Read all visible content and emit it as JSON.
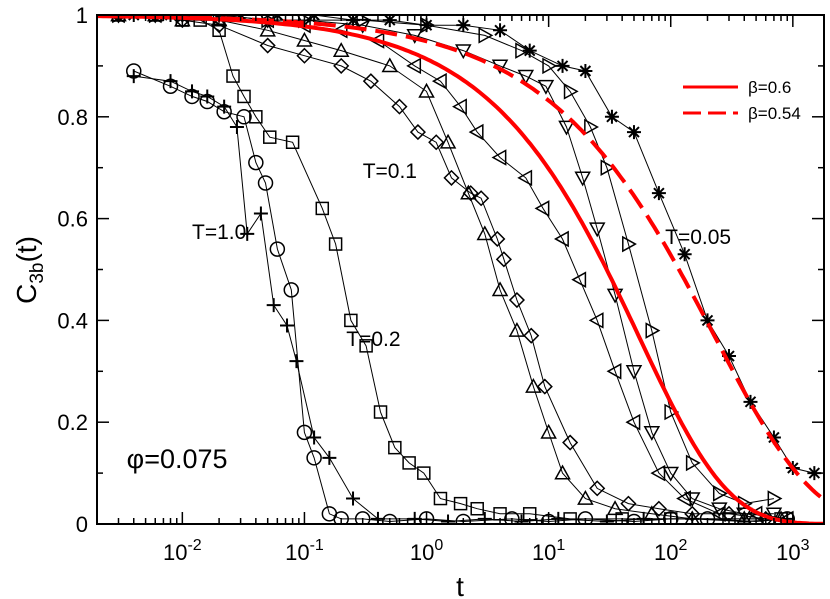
{
  "chart_data": {
    "type": "line",
    "xscale": "log",
    "xlim": [
      0.002,
      1800
    ],
    "ylim": [
      0,
      1
    ],
    "xlabel": "t",
    "ylabel_main": "C",
    "ylabel_sub": "3b",
    "ylabel_tail": "(t)",
    "x_ticks": [
      {
        "value": 0.01,
        "base": "10",
        "exp": "-2"
      },
      {
        "value": 0.1,
        "base": "10",
        "exp": "-1"
      },
      {
        "value": 1,
        "base": "10",
        "exp": "0"
      },
      {
        "value": 10,
        "base": "10",
        "exp": "1"
      },
      {
        "value": 100,
        "base": "10",
        "exp": "2"
      },
      {
        "value": 1000,
        "base": "10",
        "exp": "3"
      }
    ],
    "y_ticks": [
      {
        "value": 0,
        "label": "0"
      },
      {
        "value": 0.2,
        "label": "0.2"
      },
      {
        "value": 0.4,
        "label": "0.4"
      },
      {
        "value": 0.6,
        "label": "0.6"
      },
      {
        "value": 0.8,
        "label": "0.8"
      },
      {
        "value": 1,
        "label": "1"
      }
    ],
    "annotations": [
      {
        "text": "T=1.0",
        "x": 0.012,
        "y": 0.56
      },
      {
        "text": "T=0.2",
        "x": 0.22,
        "y": 0.35
      },
      {
        "text": "T=0.1",
        "x": 0.3,
        "y": 0.68
      },
      {
        "text": "T=0.05",
        "x": 90,
        "y": 0.55
      }
    ],
    "phi_label": {
      "symbol": "φ",
      "text": "=0.075",
      "x": 0.0035,
      "y": 0.11
    },
    "series": [
      {
        "name": "T=1.0 (circles)",
        "marker": "circle",
        "x": [
          0.004,
          0.008,
          0.012,
          0.016,
          0.022,
          0.032,
          0.04,
          0.048,
          0.06,
          0.078,
          0.1,
          0.12,
          0.16,
          0.2,
          0.3,
          0.5,
          1,
          2,
          5,
          10,
          20,
          50,
          100,
          200,
          500,
          900
        ],
        "y": [
          0.89,
          0.86,
          0.84,
          0.83,
          0.81,
          0.8,
          0.71,
          0.67,
          0.54,
          0.46,
          0.18,
          0.13,
          0.02,
          0.01,
          0.01,
          0.005,
          0.01,
          0.005,
          0.01,
          0.005,
          0.01,
          0.005,
          0.01,
          0.01,
          0.005,
          0.01
        ]
      },
      {
        "name": "T=1.0 (plus)",
        "marker": "plus",
        "x": [
          0.004,
          0.008,
          0.012,
          0.016,
          0.022,
          0.028,
          0.034,
          0.044,
          0.056,
          0.072,
          0.086,
          0.12,
          0.16,
          0.25,
          0.4,
          0.8,
          1.5,
          3,
          6,
          12,
          30,
          60,
          150,
          400,
          900
        ],
        "y": [
          0.88,
          0.87,
          0.85,
          0.84,
          0.82,
          0.78,
          0.57,
          0.61,
          0.43,
          0.39,
          0.32,
          0.17,
          0.13,
          0.05,
          0.01,
          0.01,
          0.005,
          0.01,
          0.005,
          0.01,
          0.005,
          0.01,
          0.01,
          0.005,
          0.01
        ]
      },
      {
        "name": "T=0.2 (squares)",
        "marker": "square",
        "x": [
          0.003,
          0.006,
          0.01,
          0.014,
          0.02,
          0.026,
          0.032,
          0.04,
          0.052,
          0.08,
          0.14,
          0.18,
          0.24,
          0.32,
          0.42,
          0.55,
          0.72,
          0.95,
          1.3,
          1.9,
          2.6,
          4,
          7,
          15,
          40,
          100,
          300,
          800
        ],
        "y": [
          1.0,
          1.0,
          0.99,
          0.99,
          0.97,
          0.88,
          0.84,
          0.8,
          0.76,
          0.75,
          0.62,
          0.55,
          0.4,
          0.35,
          0.22,
          0.15,
          0.12,
          0.1,
          0.05,
          0.04,
          0.03,
          0.02,
          0.02,
          0.01,
          0.01,
          0.01,
          0.01,
          0.01
        ]
      },
      {
        "name": "T=0.1 (diamonds)",
        "marker": "diamond",
        "x": [
          0.003,
          0.006,
          0.01,
          0.02,
          0.05,
          0.1,
          0.2,
          0.35,
          0.6,
          0.85,
          1.2,
          1.6,
          2.3,
          2.8,
          3.8,
          4.3,
          5.5,
          7.2,
          9.3,
          15,
          25,
          45,
          80,
          150,
          300,
          600
        ],
        "y": [
          1.0,
          1.0,
          0.99,
          0.98,
          0.94,
          0.92,
          0.9,
          0.87,
          0.82,
          0.77,
          0.75,
          0.68,
          0.65,
          0.64,
          0.56,
          0.52,
          0.44,
          0.37,
          0.27,
          0.16,
          0.07,
          0.04,
          0.03,
          0.02,
          0.02,
          0.01
        ]
      },
      {
        "name": "T=0.1 (up-triangles)",
        "marker": "triangle-up",
        "x": [
          0.003,
          0.006,
          0.01,
          0.02,
          0.05,
          0.1,
          0.2,
          0.5,
          1.0,
          1.5,
          2.2,
          3.0,
          4.0,
          5.5,
          7.5,
          10,
          13,
          20,
          35,
          70,
          150,
          400,
          800
        ],
        "y": [
          1.0,
          1.0,
          0.99,
          0.99,
          0.97,
          0.95,
          0.93,
          0.9,
          0.85,
          0.75,
          0.65,
          0.57,
          0.46,
          0.38,
          0.27,
          0.18,
          0.1,
          0.05,
          0.03,
          0.02,
          0.01,
          0.01,
          0.01
        ]
      },
      {
        "name": "T=0.1 (left-triangles)",
        "marker": "triangle-left",
        "x": [
          0.003,
          0.006,
          0.01,
          0.02,
          0.05,
          0.1,
          0.2,
          0.4,
          0.8,
          1.3,
          1.9,
          2.6,
          4.0,
          6.5,
          9.0,
          13,
          18,
          25,
          35,
          50,
          80,
          130,
          250,
          500,
          900
        ],
        "y": [
          1.0,
          1.0,
          1.0,
          0.99,
          0.99,
          0.98,
          0.97,
          0.95,
          0.9,
          0.87,
          0.82,
          0.77,
          0.72,
          0.68,
          0.62,
          0.56,
          0.48,
          0.4,
          0.3,
          0.2,
          0.1,
          0.05,
          0.02,
          0.02,
          0.01
        ]
      },
      {
        "name": "T=0.1 (down-triangles)",
        "marker": "triangle-down",
        "x": [
          0.003,
          0.006,
          0.01,
          0.02,
          0.05,
          0.1,
          0.3,
          0.8,
          2,
          4,
          6.5,
          9.5,
          14,
          19,
          25,
          35,
          50,
          70,
          100,
          150,
          250,
          400,
          700
        ],
        "y": [
          1.0,
          1.0,
          1.0,
          1.0,
          0.99,
          0.99,
          0.98,
          0.96,
          0.93,
          0.9,
          0.88,
          0.86,
          0.78,
          0.68,
          0.58,
          0.45,
          0.3,
          0.18,
          0.1,
          0.05,
          0.03,
          0.02,
          0.02
        ]
      },
      {
        "name": "T=0.05 (right-triangles)",
        "marker": "triangle-right",
        "x": [
          0.003,
          0.006,
          0.01,
          0.02,
          0.05,
          0.1,
          0.3,
          1,
          3,
          6,
          10,
          15,
          22,
          30,
          45,
          70,
          100,
          150,
          250,
          400,
          700
        ],
        "y": [
          1.0,
          1.0,
          1.0,
          1.0,
          0.99,
          0.99,
          0.99,
          0.98,
          0.96,
          0.93,
          0.9,
          0.85,
          0.78,
          0.7,
          0.55,
          0.38,
          0.22,
          0.12,
          0.06,
          0.04,
          0.05
        ]
      },
      {
        "name": "T=0.05 (asterisks)",
        "marker": "asterisk",
        "x": [
          0.004,
          0.008,
          0.015,
          0.03,
          0.06,
          0.12,
          0.25,
          0.5,
          1,
          2,
          4,
          7,
          13,
          20,
          33,
          50,
          80,
          130,
          200,
          300,
          450,
          700,
          1000,
          1500
        ],
        "y": [
          1.0,
          1.0,
          1.0,
          1.0,
          1.0,
          1.0,
          0.99,
          0.99,
          0.98,
          0.98,
          0.97,
          0.93,
          0.9,
          0.89,
          0.8,
          0.77,
          0.65,
          0.53,
          0.4,
          0.33,
          0.24,
          0.17,
          0.11,
          0.1
        ]
      }
    ],
    "fits": [
      {
        "name": "β=0.6",
        "style": "solid",
        "color": "#ff0000",
        "beta": 0.6,
        "tau": 55
      },
      {
        "name": "β=0.54",
        "style": "dashed",
        "color": "#ff0000",
        "beta": 0.54,
        "tau": 230
      }
    ],
    "legend": {
      "position": "top-right",
      "entries": [
        {
          "label": "β=0.6",
          "style": "solid"
        },
        {
          "label": "β=0.54",
          "style": "dashed"
        }
      ]
    }
  }
}
